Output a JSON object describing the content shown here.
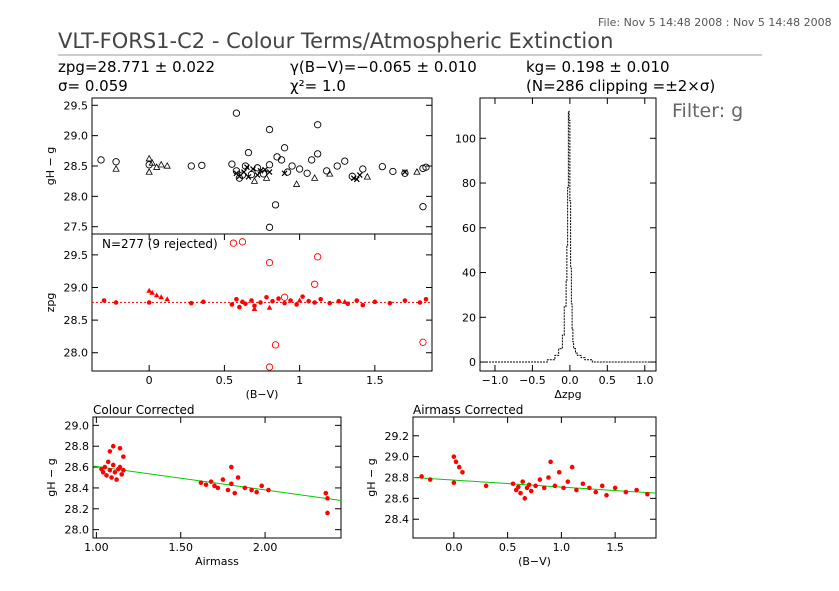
{
  "header": {
    "file_info": "File: Nov  5 14:48 2008 : Nov  5 14:48 2008",
    "title": "VLT-FORS1-C2 - Colour Terms/Atmospheric Extinction",
    "zp_line": "zpg=28.771 ± 0.022",
    "sigma_line": "σ= 0.059",
    "gamma_line": "γ(B−V)=−0.065 ± 0.010",
    "chi_line": "χ²=  1.0",
    "k_line": "kg= 0.198 ± 0.010",
    "clip_line": "(N=286 clipping =±2×σ)",
    "filter": "Filter: g"
  },
  "colors": {
    "points": "#ff0000",
    "fit_line": "#00cc00",
    "axes": "#000000"
  },
  "chart_data": [
    {
      "id": "top-left",
      "type": "scatter",
      "ylabel": "gH − g",
      "xlim": [
        -0.38,
        1.88
      ],
      "ylim": [
        27.38,
        29.62
      ],
      "yticks": [
        27.5,
        28.0,
        28.5,
        29.0,
        29.5
      ],
      "series": [
        {
          "marker": "circle-open",
          "points": [
            [
              -0.32,
              28.6
            ],
            [
              -0.22,
              28.57
            ],
            [
              0.0,
              28.52
            ],
            [
              0.28,
              28.5
            ],
            [
              0.35,
              28.51
            ],
            [
              0.55,
              28.53
            ],
            [
              0.58,
              28.42
            ],
            [
              0.6,
              28.3
            ],
            [
              0.62,
              28.35
            ],
            [
              0.64,
              28.5
            ],
            [
              0.68,
              28.36
            ],
            [
              0.72,
              28.47
            ],
            [
              0.76,
              28.37
            ],
            [
              0.8,
              28.52
            ],
            [
              0.85,
              28.65
            ],
            [
              0.88,
              28.6
            ],
            [
              0.92,
              28.4
            ],
            [
              0.95,
              28.5
            ],
            [
              1.0,
              28.45
            ],
            [
              1.05,
              28.38
            ],
            [
              1.08,
              28.6
            ],
            [
              1.12,
              28.7
            ],
            [
              1.18,
              28.42
            ],
            [
              1.25,
              28.5
            ],
            [
              1.3,
              28.58
            ],
            [
              1.35,
              28.33
            ],
            [
              1.42,
              28.45
            ],
            [
              1.55,
              28.49
            ],
            [
              1.62,
              28.41
            ],
            [
              1.7,
              28.38
            ],
            [
              1.82,
              28.46
            ],
            [
              1.84,
              28.48
            ],
            [
              0.58,
              29.37
            ],
            [
              0.8,
              29.1
            ],
            [
              1.12,
              29.18
            ],
            [
              0.84,
              27.86
            ],
            [
              0.8,
              27.49
            ],
            [
              1.82,
              27.83
            ],
            [
              0.66,
              28.72
            ],
            [
              0.9,
              28.8
            ]
          ]
        },
        {
          "marker": "triangle-open",
          "points": [
            [
              -0.22,
              28.45
            ],
            [
              0.0,
              28.62
            ],
            [
              0.02,
              28.55
            ],
            [
              0.05,
              28.48
            ],
            [
              0.08,
              28.52
            ],
            [
              0.12,
              28.5
            ],
            [
              0.0,
              28.4
            ],
            [
              0.7,
              28.25
            ],
            [
              0.78,
              28.3
            ],
            [
              0.98,
              28.2
            ],
            [
              1.1,
              28.3
            ],
            [
              1.2,
              28.37
            ],
            [
              1.45,
              28.32
            ],
            [
              1.78,
              28.4
            ]
          ]
        },
        {
          "marker": "x",
          "points": [
            [
              0.58,
              28.38
            ],
            [
              0.6,
              28.33
            ],
            [
              0.63,
              28.4
            ],
            [
              0.66,
              28.32
            ],
            [
              0.69,
              28.45
            ],
            [
              0.72,
              28.35
            ],
            [
              0.74,
              28.42
            ],
            [
              0.8,
              28.4
            ],
            [
              0.9,
              28.38
            ],
            [
              1.36,
              28.3
            ],
            [
              1.38,
              28.28
            ],
            [
              1.4,
              28.35
            ],
            [
              1.7,
              28.4
            ],
            [
              0.65,
              28.48
            ],
            [
              0.77,
              28.44
            ]
          ]
        }
      ]
    },
    {
      "id": "middle-left",
      "type": "scatter",
      "ylabel": "zpg",
      "xlabel": "(B−V)",
      "annotation": "N=277 (9 rejected)",
      "xlim": [
        -0.38,
        1.88
      ],
      "ylim": [
        27.72,
        29.82
      ],
      "xticks": [
        0.0,
        0.5,
        1.0,
        1.5
      ],
      "xticklabels": [
        "0",
        "0.5",
        "1",
        "1.5"
      ],
      "yticks": [
        28.0,
        28.5,
        29.0,
        29.5
      ],
      "reference_line": 28.771,
      "series": [
        {
          "marker": "dot",
          "points": [
            [
              -0.3,
              28.8
            ],
            [
              -0.22,
              28.77
            ],
            [
              0.0,
              28.77
            ],
            [
              0.28,
              28.76
            ],
            [
              0.36,
              28.78
            ],
            [
              0.55,
              28.74
            ],
            [
              0.58,
              28.82
            ],
            [
              0.6,
              28.7
            ],
            [
              0.62,
              28.78
            ],
            [
              0.64,
              28.75
            ],
            [
              0.68,
              28.8
            ],
            [
              0.7,
              28.72
            ],
            [
              0.74,
              28.77
            ],
            [
              0.78,
              28.85
            ],
            [
              0.82,
              28.79
            ],
            [
              0.86,
              28.83
            ],
            [
              0.9,
              28.76
            ],
            [
              0.94,
              28.8
            ],
            [
              0.98,
              28.74
            ],
            [
              1.02,
              28.86
            ],
            [
              1.06,
              28.79
            ],
            [
              1.1,
              28.77
            ],
            [
              1.14,
              28.82
            ],
            [
              1.2,
              28.76
            ],
            [
              1.26,
              28.79
            ],
            [
              1.32,
              28.75
            ],
            [
              1.38,
              28.8
            ],
            [
              1.42,
              28.73
            ],
            [
              1.5,
              28.78
            ],
            [
              1.6,
              28.76
            ],
            [
              1.7,
              28.8
            ],
            [
              1.8,
              28.77
            ],
            [
              1.84,
              28.82
            ]
          ]
        },
        {
          "marker": "triangle",
          "points": [
            [
              0.0,
              28.95
            ],
            [
              0.02,
              28.92
            ],
            [
              0.05,
              28.88
            ],
            [
              0.08,
              28.85
            ],
            [
              0.12,
              28.82
            ],
            [
              0.7,
              28.67
            ],
            [
              0.8,
              28.69
            ],
            [
              1.0,
              28.8
            ],
            [
              1.3,
              28.78
            ]
          ]
        },
        {
          "marker": "circle-open",
          "points": [
            [
              0.56,
              29.68
            ],
            [
              0.8,
              29.38
            ],
            [
              1.12,
              29.47
            ],
            [
              1.1,
              29.05
            ],
            [
              0.84,
              28.12
            ],
            [
              0.8,
              27.78
            ],
            [
              1.82,
              28.16
            ],
            [
              0.62,
              29.7
            ],
            [
              0.9,
              28.85
            ]
          ]
        }
      ]
    },
    {
      "id": "right-histogram",
      "type": "area",
      "xlabel": "Δzpg",
      "xlim": [
        -1.2,
        1.15
      ],
      "ylim": [
        -4,
        118
      ],
      "xticks": [
        -1.0,
        -0.5,
        0.0,
        0.5,
        1.0
      ],
      "xticklabels": [
        "−1.0",
        "−0.5",
        "0.0",
        "0.5",
        "1.0"
      ],
      "yticks": [
        0,
        20,
        40,
        60,
        80,
        100
      ],
      "x": [
        -1.2,
        -0.3,
        -0.2,
        -0.15,
        -0.1,
        -0.075,
        -0.05,
        -0.04,
        -0.03,
        -0.02,
        -0.01,
        0.0,
        0.01,
        0.02,
        0.03,
        0.04,
        0.05,
        0.075,
        0.1,
        0.15,
        0.2,
        0.3,
        1.15
      ],
      "values": [
        0,
        1,
        3,
        6,
        12,
        25,
        36,
        52,
        78,
        112,
        108,
        72,
        42,
        26,
        15,
        9,
        6,
        4,
        3,
        2,
        1,
        0,
        0
      ]
    },
    {
      "id": "bottom-left",
      "type": "scatter",
      "title": "Colour Corrected",
      "ylabel": "gH − g",
      "xlabel": "Airmass",
      "xlim": [
        0.98,
        2.45
      ],
      "ylim": [
        27.92,
        29.08
      ],
      "xticks": [
        1.0,
        1.5,
        2.0
      ],
      "xticklabels": [
        "1.00",
        "1.50",
        "2.00"
      ],
      "yticks": [
        28.0,
        28.2,
        28.4,
        28.6,
        28.8,
        29.0
      ],
      "fit_line": [
        [
          0.98,
          28.61
        ],
        [
          2.45,
          28.28
        ]
      ],
      "points": [
        [
          1.03,
          28.58
        ],
        [
          1.04,
          28.55
        ],
        [
          1.05,
          28.6
        ],
        [
          1.06,
          28.52
        ],
        [
          1.07,
          28.65
        ],
        [
          1.08,
          28.57
        ],
        [
          1.09,
          28.5
        ],
        [
          1.1,
          28.62
        ],
        [
          1.1,
          28.8
        ],
        [
          1.11,
          28.55
        ],
        [
          1.12,
          28.48
        ],
        [
          1.13,
          28.58
        ],
        [
          1.14,
          28.6
        ],
        [
          1.15,
          28.53
        ],
        [
          1.16,
          28.57
        ],
        [
          1.16,
          28.7
        ],
        [
          1.08,
          28.75
        ],
        [
          1.14,
          28.78
        ],
        [
          1.62,
          28.45
        ],
        [
          1.65,
          28.43
        ],
        [
          1.68,
          28.46
        ],
        [
          1.7,
          28.42
        ],
        [
          1.72,
          28.4
        ],
        [
          1.75,
          28.48
        ],
        [
          1.78,
          28.38
        ],
        [
          1.8,
          28.44
        ],
        [
          1.8,
          28.6
        ],
        [
          1.82,
          28.35
        ],
        [
          1.84,
          28.5
        ],
        [
          1.88,
          28.4
        ],
        [
          1.92,
          28.38
        ],
        [
          1.95,
          28.36
        ],
        [
          1.98,
          28.42
        ],
        [
          2.02,
          28.38
        ],
        [
          2.36,
          28.35
        ],
        [
          2.37,
          28.3
        ],
        [
          2.37,
          28.16
        ]
      ]
    },
    {
      "id": "bottom-right",
      "type": "scatter",
      "title": "Airmass Corrected",
      "ylabel": "gH − g",
      "xlabel": "(B−V)",
      "xlim": [
        -0.38,
        1.88
      ],
      "ylim": [
        28.22,
        29.38
      ],
      "xticks": [
        0.0,
        0.5,
        1.0,
        1.5
      ],
      "xticklabels": [
        "0.0",
        "0.5",
        "1.0",
        "1.5"
      ],
      "yticks": [
        28.4,
        28.6,
        28.8,
        29.0,
        29.2
      ],
      "fit_line": [
        [
          -0.38,
          28.8
        ],
        [
          1.88,
          28.65
        ]
      ],
      "points": [
        [
          -0.3,
          28.81
        ],
        [
          -0.22,
          28.78
        ],
        [
          0.0,
          29.0
        ],
        [
          0.02,
          28.95
        ],
        [
          0.05,
          28.9
        ],
        [
          0.08,
          28.85
        ],
        [
          0.0,
          28.75
        ],
        [
          0.3,
          28.72
        ],
        [
          0.55,
          28.74
        ],
        [
          0.58,
          28.68
        ],
        [
          0.6,
          28.71
        ],
        [
          0.62,
          28.65
        ],
        [
          0.64,
          28.76
        ],
        [
          0.66,
          28.6
        ],
        [
          0.68,
          28.7
        ],
        [
          0.7,
          28.73
        ],
        [
          0.72,
          28.67
        ],
        [
          0.76,
          28.72
        ],
        [
          0.8,
          28.78
        ],
        [
          0.84,
          28.7
        ],
        [
          0.88,
          28.8
        ],
        [
          0.9,
          28.95
        ],
        [
          0.94,
          28.72
        ],
        [
          0.98,
          28.85
        ],
        [
          1.02,
          28.7
        ],
        [
          1.06,
          28.76
        ],
        [
          1.1,
          28.9
        ],
        [
          1.14,
          28.68
        ],
        [
          1.2,
          28.74
        ],
        [
          1.26,
          28.7
        ],
        [
          1.32,
          28.66
        ],
        [
          1.38,
          28.72
        ],
        [
          1.42,
          28.63
        ],
        [
          1.5,
          28.7
        ],
        [
          1.6,
          28.66
        ],
        [
          1.7,
          28.68
        ],
        [
          1.8,
          28.64
        ]
      ]
    }
  ]
}
